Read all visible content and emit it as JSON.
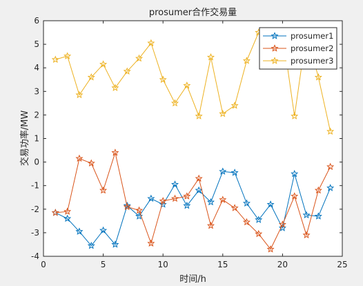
{
  "chart_data": {
    "type": "line",
    "title": "prosumer合作交易量",
    "xlabel": "时间/h",
    "ylabel": "交易功率/MW",
    "xlim": [
      0,
      25
    ],
    "ylim": [
      -4,
      6
    ],
    "xticks": [
      0,
      5,
      10,
      15,
      20,
      25
    ],
    "yticks": [
      -4,
      -3,
      -2,
      -1,
      0,
      1,
      2,
      3,
      4,
      5,
      6
    ],
    "grid": false,
    "legend_position": "top-right",
    "marker": "star",
    "x": [
      1,
      2,
      3,
      4,
      5,
      6,
      7,
      8,
      9,
      10,
      11,
      12,
      13,
      14,
      15,
      16,
      17,
      18,
      19,
      20,
      21,
      22,
      23,
      24
    ],
    "series": [
      {
        "name": "prosumer1",
        "color": "#0072bd",
        "values": [
          -2.15,
          -2.4,
          -2.95,
          -3.55,
          -2.9,
          -3.5,
          -1.85,
          -2.3,
          -1.55,
          -1.8,
          -0.95,
          -1.85,
          -1.2,
          -1.7,
          -0.4,
          -0.45,
          -1.75,
          -2.45,
          -1.8,
          -2.8,
          -0.5,
          -2.25,
          -2.3,
          -1.1
        ]
      },
      {
        "name": "prosumer2",
        "color": "#d95319",
        "values": [
          -2.15,
          -2.1,
          0.15,
          -0.05,
          -1.2,
          0.4,
          -1.9,
          -2.05,
          -3.45,
          -1.65,
          -1.55,
          -1.45,
          -0.7,
          -2.7,
          -1.6,
          -1.95,
          -2.55,
          -3.05,
          -3.7,
          -2.65,
          -1.45,
          -3.1,
          -1.2,
          -0.2
        ]
      },
      {
        "name": "prosumer3",
        "color": "#edb120",
        "values": [
          4.35,
          4.5,
          2.85,
          3.6,
          4.15,
          3.15,
          3.85,
          4.4,
          5.05,
          3.5,
          2.5,
          3.25,
          1.95,
          4.45,
          2.05,
          2.4,
          4.3,
          5.5,
          5.5,
          5.5,
          1.95,
          5.5,
          3.6,
          1.3
        ]
      }
    ]
  }
}
